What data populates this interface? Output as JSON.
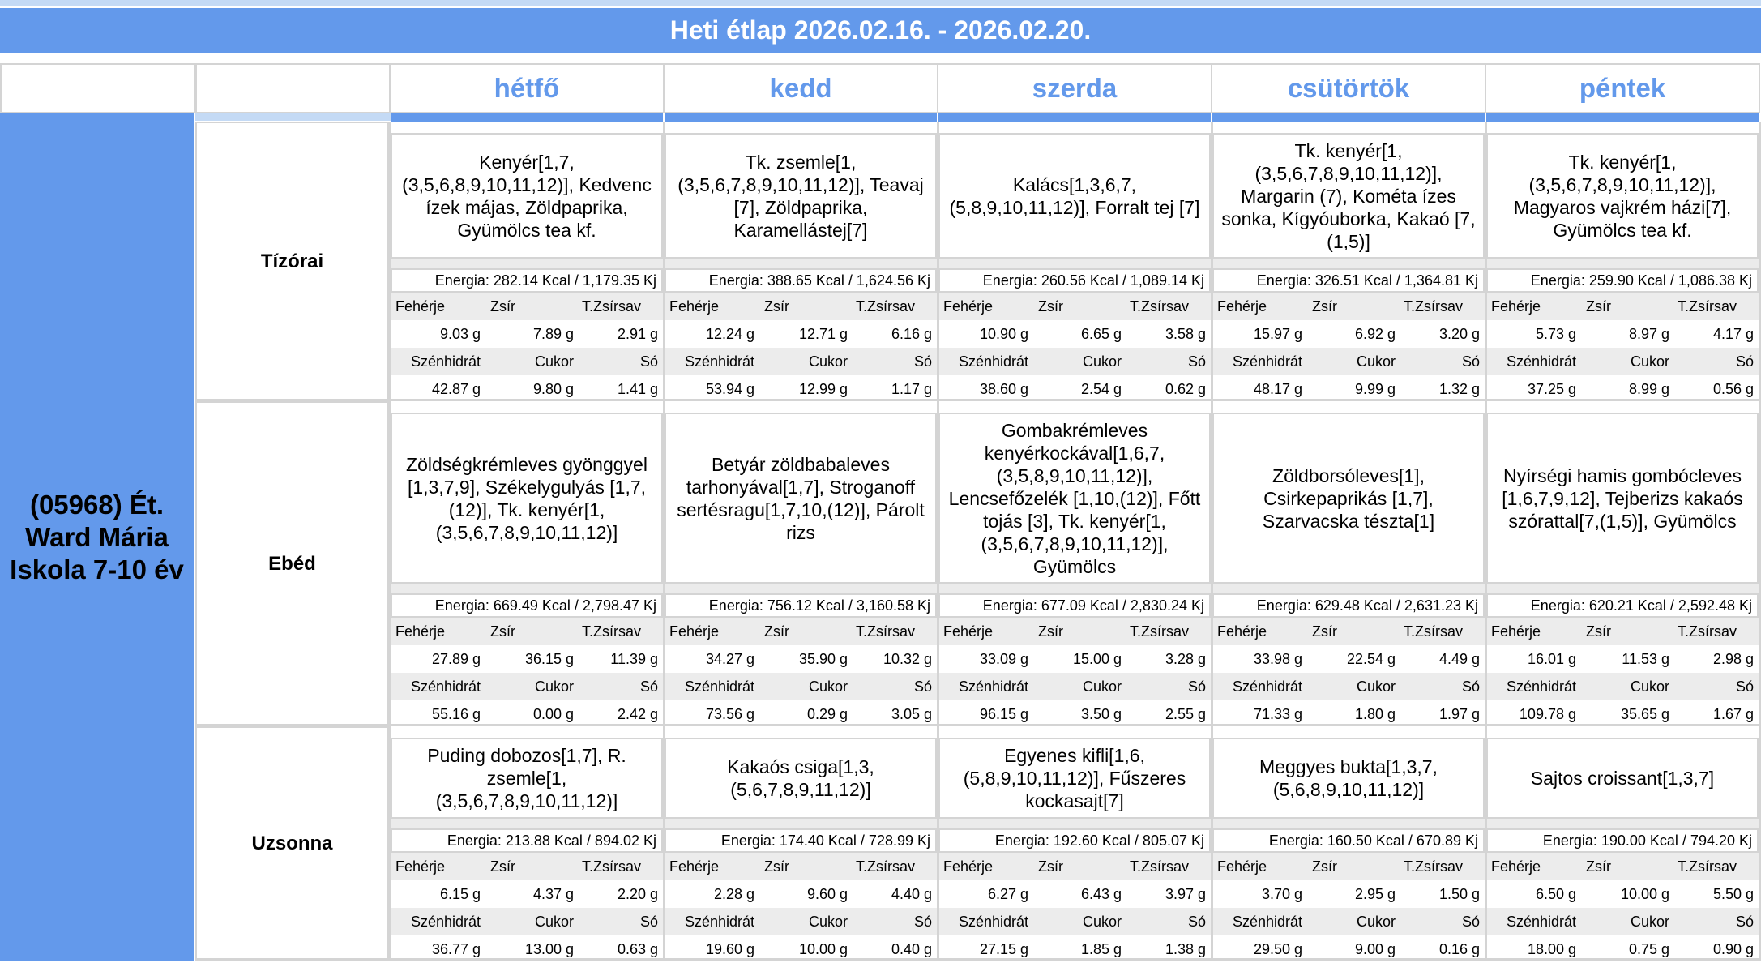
{
  "title": "Heti étlap 2026.02.16. - 2026.02.20.",
  "school": "(05968) Ét. Ward Mária Iskola 7-10 év",
  "days": [
    "hétfő",
    "kedd",
    "szerda",
    "csütörtök",
    "péntek"
  ],
  "nutrient_labels": {
    "feherje": "Fehérje",
    "zsir": "Zsír",
    "tzsirsav": "T.Zsírsav",
    "szenhidrat": "Szénhidrát",
    "cukor": "Cukor",
    "so": "Só"
  },
  "meals": [
    {
      "name": "Tízórai",
      "cells": [
        {
          "food": "Kenyér[1,7,(3,5,6,8,9,10,11,12)], Kedvenc ízek májas, Zöldpaprika, Gyümölcs tea kf.",
          "energy": "Energia: 282.14 Kcal / 1,179.35 Kj",
          "feherje": "9.03 g",
          "zsir": "7.89 g",
          "tzsirsav": "2.91 g",
          "szenhidrat": "42.87 g",
          "cukor": "9.80 g",
          "so": "1.41 g"
        },
        {
          "food": "Tk. zsemle[1,(3,5,6,7,8,9,10,11,12)], Teavaj [7], Zöldpaprika, Karamellástej[7]",
          "energy": "Energia: 388.65 Kcal / 1,624.56 Kj",
          "feherje": "12.24 g",
          "zsir": "12.71 g",
          "tzsirsav": "6.16 g",
          "szenhidrat": "53.94 g",
          "cukor": "12.99 g",
          "so": "1.17 g"
        },
        {
          "food": "Kalács[1,3,6,7,(5,8,9,10,11,12)], Forralt tej [7]",
          "energy": "Energia: 260.56 Kcal / 1,089.14 Kj",
          "feherje": "10.90 g",
          "zsir": "6.65 g",
          "tzsirsav": "3.58 g",
          "szenhidrat": "38.60 g",
          "cukor": "2.54 g",
          "so": "0.62 g"
        },
        {
          "food": "Tk. kenyér[1,(3,5,6,7,8,9,10,11,12)], Margarin (7), Kométa ízes sonka, Kígyóuborka, Kakaó [7,(1,5)]",
          "energy": "Energia: 326.51 Kcal / 1,364.81 Kj",
          "feherje": "15.97 g",
          "zsir": "6.92 g",
          "tzsirsav": "3.20 g",
          "szenhidrat": "48.17 g",
          "cukor": "9.99 g",
          "so": "1.32 g"
        },
        {
          "food": "Tk. kenyér[1,(3,5,6,7,8,9,10,11,12)], Magyaros vajkrém házi[7], Gyümölcs tea kf.",
          "energy": "Energia: 259.90 Kcal / 1,086.38 Kj",
          "feherje": "5.73 g",
          "zsir": "8.97 g",
          "tzsirsav": "4.17 g",
          "szenhidrat": "37.25 g",
          "cukor": "8.99 g",
          "so": "0.56 g"
        }
      ]
    },
    {
      "name": "Ebéd",
      "cells": [
        {
          "food": "Zöldségkrémleves gyönggyel [1,3,7,9], Székelygulyás [1,7,(12)], Tk. kenyér[1,(3,5,6,7,8,9,10,11,12)]",
          "energy": "Energia: 669.49 Kcal / 2,798.47 Kj",
          "feherje": "27.89 g",
          "zsir": "36.15 g",
          "tzsirsav": "11.39 g",
          "szenhidrat": "55.16 g",
          "cukor": "0.00 g",
          "so": "2.42 g"
        },
        {
          "food": "Betyár zöldbabaleves tarhonyával[1,7], Stroganoff sertésragu[1,7,10,(12)], Párolt rizs",
          "energy": "Energia: 756.12 Kcal / 3,160.58 Kj",
          "feherje": "34.27 g",
          "zsir": "35.90 g",
          "tzsirsav": "10.32 g",
          "szenhidrat": "73.56 g",
          "cukor": "0.29 g",
          "so": "3.05 g"
        },
        {
          "food": "Gombakrémleves kenyérkockával[1,6,7,(3,5,8,9,10,11,12)], Lencsefőzelék [1,10,(12)], Főtt tojás [3], Tk. kenyér[1,(3,5,6,7,8,9,10,11,12)], Gyümölcs",
          "energy": "Energia: 677.09 Kcal / 2,830.24 Kj",
          "feherje": "33.09 g",
          "zsir": "15.00 g",
          "tzsirsav": "3.28 g",
          "szenhidrat": "96.15 g",
          "cukor": "3.50 g",
          "so": "2.55 g"
        },
        {
          "food": "Zöldborsóleves[1], Csirkepaprikás [1,7], Szarvacska tészta[1]",
          "energy": "Energia: 629.48 Kcal / 2,631.23 Kj",
          "feherje": "33.98 g",
          "zsir": "22.54 g",
          "tzsirsav": "4.49 g",
          "szenhidrat": "71.33 g",
          "cukor": "1.80 g",
          "so": "1.97 g"
        },
        {
          "food": "Nyírségi hamis gombócleves [1,6,7,9,12], Tejberizs kakaós szórattal[7,(1,5)], Gyümölcs",
          "energy": "Energia: 620.21 Kcal / 2,592.48 Kj",
          "feherje": "16.01 g",
          "zsir": "11.53 g",
          "tzsirsav": "2.98 g",
          "szenhidrat": "109.78 g",
          "cukor": "35.65 g",
          "so": "1.67 g"
        }
      ]
    },
    {
      "name": "Uzsonna",
      "cells": [
        {
          "food": "Puding dobozos[1,7], R. zsemle[1,(3,5,6,7,8,9,10,11,12)]",
          "energy": "Energia: 213.88 Kcal / 894.02 Kj",
          "feherje": "6.15 g",
          "zsir": "4.37 g",
          "tzsirsav": "2.20 g",
          "szenhidrat": "36.77 g",
          "cukor": "13.00 g",
          "so": "0.63 g"
        },
        {
          "food": "Kakaós csiga[1,3,(5,6,7,8,9,11,12)]",
          "energy": "Energia: 174.40 Kcal / 728.99 Kj",
          "feherje": "2.28 g",
          "zsir": "9.60 g",
          "tzsirsav": "4.40 g",
          "szenhidrat": "19.60 g",
          "cukor": "10.00 g",
          "so": "0.40 g"
        },
        {
          "food": "Egyenes kifli[1,6,(5,8,9,10,11,12)], Fűszeres kockasajt[7]",
          "energy": "Energia: 192.60 Kcal / 805.07 Kj",
          "feherje": "6.27 g",
          "zsir": "6.43 g",
          "tzsirsav": "3.97 g",
          "szenhidrat": "27.15 g",
          "cukor": "1.85 g",
          "so": "1.38 g"
        },
        {
          "food": "Meggyes bukta[1,3,7,(5,6,8,9,10,11,12)]",
          "energy": "Energia: 160.50 Kcal / 670.89 Kj",
          "feherje": "3.70 g",
          "zsir": "2.95 g",
          "tzsirsav": "1.50 g",
          "szenhidrat": "29.50 g",
          "cukor": "9.00 g",
          "so": "0.16 g"
        },
        {
          "food": "Sajtos croissant[1,3,7]",
          "energy": "Energia: 190.00 Kcal / 794.20 Kj",
          "feherje": "6.50 g",
          "zsir": "10.00 g",
          "tzsirsav": "5.50 g",
          "szenhidrat": "18.00 g",
          "cukor": "0.75 g",
          "so": "0.90 g"
        }
      ]
    }
  ]
}
